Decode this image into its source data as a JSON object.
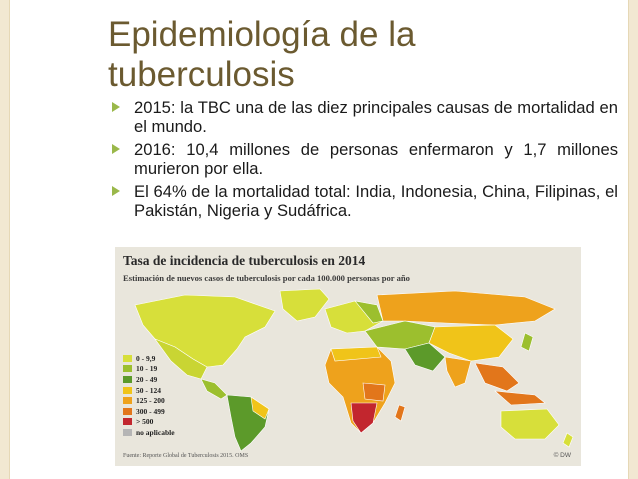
{
  "slide": {
    "title": "Epidemiología de la tuberculosis",
    "bullets": [
      "2015: la TBC una de las diez principales causas de mortalidad en el mundo.",
      "2016: 10,4 millones de personas enfermaron y 1,7 millones murieron por ella.",
      "El 64% de la mortalidad total: India, Indonesia, China, Filipinas, el Pakistán, Nigeria y Sudáfrica."
    ],
    "accent_color": "#9ab84a",
    "title_color": "#6b5a30"
  },
  "map": {
    "title": "Tasa de incidencia de tuberculosis en  2014",
    "subtitle": "Estimación de nuevos casos de tuberculosis por cada 100.000 personas por año",
    "legend": [
      {
        "label": "0 - 9,9",
        "color": "#d7df3a"
      },
      {
        "label": "10 - 19",
        "color": "#9cbf2e"
      },
      {
        "label": "20 - 49",
        "color": "#5c9a2a"
      },
      {
        "label": "50 - 124",
        "color": "#f0c419"
      },
      {
        "label": "125 - 200",
        "color": "#eea21c"
      },
      {
        "label": "300 - 499",
        "color": "#e2761b"
      },
      {
        "label": "> 500",
        "color": "#c2262e"
      },
      {
        "label": "no aplicable",
        "color": "#b5b5b5"
      }
    ],
    "source": "Fuente: Reporte Global de Tuberculosis 2015. OMS",
    "credit": "© DW"
  }
}
